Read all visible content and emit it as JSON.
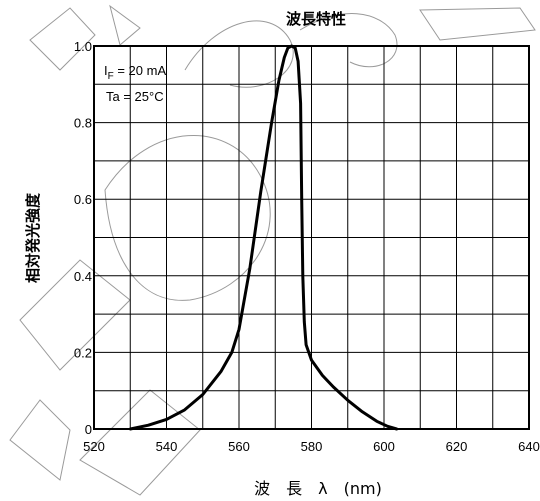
{
  "chart_data": {
    "type": "line",
    "title": "波長特性",
    "xlabel": "波　長　λ　(nm)",
    "ylabel": "相対発光強度",
    "xlim": [
      520,
      640
    ],
    "ylim": [
      0,
      1.0
    ],
    "x_ticks": [
      "520",
      "540",
      "560",
      "580",
      "600",
      "620",
      "640"
    ],
    "y_ticks": [
      "0",
      "0.2",
      "0.4",
      "0.6",
      "0.8",
      "1.0"
    ],
    "grid": true,
    "annotations": [
      {
        "main": "I",
        "sub": "F",
        "rest": " = 20 mA"
      },
      {
        "text": "Ta = 25°C"
      }
    ],
    "series": [
      {
        "x": [
          530,
          535,
          540,
          545,
          550,
          555,
          558,
          560,
          563,
          566,
          569,
          571,
          572.5,
          573.5,
          574.5,
          575.5,
          576.3,
          577,
          577.3,
          577.6,
          578,
          578.5,
          580,
          583,
          586,
          590,
          594,
          598,
          601,
          603.5
        ],
        "y": [
          0,
          0.01,
          0.025,
          0.05,
          0.09,
          0.15,
          0.2,
          0.26,
          0.42,
          0.62,
          0.8,
          0.91,
          0.97,
          0.995,
          1.0,
          0.995,
          0.96,
          0.85,
          0.6,
          0.4,
          0.28,
          0.22,
          0.18,
          0.14,
          0.11,
          0.075,
          0.045,
          0.02,
          0.007,
          0
        ]
      }
    ]
  }
}
